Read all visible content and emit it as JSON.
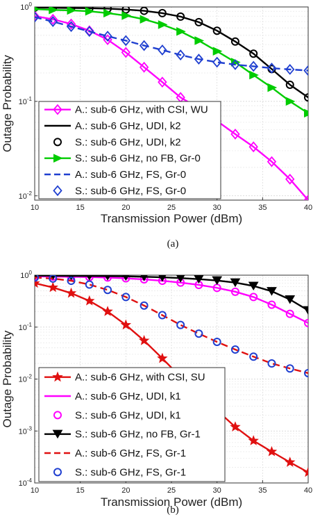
{
  "chart_data": [
    {
      "type": "line",
      "caption": "(a)",
      "xlabel": "Transmission Power (dBm)",
      "ylabel": "Outage Probability",
      "xlim": [
        10,
        40
      ],
      "ylim": [
        0.009,
        1
      ],
      "yscale": "log",
      "grid": true,
      "legend_position": "bottom-left",
      "x_ticks": [
        "10",
        "15",
        "20",
        "25",
        "30",
        "35",
        "40"
      ],
      "y_ticks": [
        {
          "value": 1,
          "base": "10",
          "exp": "0"
        },
        {
          "value": 0.1,
          "base": "10",
          "exp": "-1"
        },
        {
          "value": 0.01,
          "base": "10",
          "exp": "-2"
        }
      ],
      "series": [
        {
          "name": "A.: sub-6 GHz, with CSI, WU",
          "color": "#ff00ff",
          "line": "solid",
          "marker": "diamond",
          "x": [
            10,
            12,
            14,
            16,
            18,
            20,
            22,
            24,
            26,
            28,
            30,
            32,
            34,
            36,
            38,
            40
          ],
          "values": [
            0.8,
            0.74,
            0.66,
            0.56,
            0.45,
            0.33,
            0.23,
            0.16,
            0.11,
            0.085,
            0.062,
            0.045,
            0.033,
            0.023,
            0.015,
            0.009
          ]
        },
        {
          "name": "A.: sub-6 GHz, UDI, k2",
          "color": "#000000",
          "line": "solid",
          "marker": "none",
          "x": [
            10,
            12,
            14,
            16,
            18,
            20,
            22,
            24,
            26,
            28,
            30,
            32,
            34,
            36,
            38,
            40
          ],
          "values": [
            0.985,
            0.98,
            0.975,
            0.97,
            0.96,
            0.94,
            0.91,
            0.86,
            0.79,
            0.69,
            0.56,
            0.43,
            0.32,
            0.22,
            0.15,
            0.11
          ]
        },
        {
          "name": "S.: sub-6 GHz, UDI, k2",
          "color": "#000000",
          "line": "none",
          "marker": "circle",
          "x": [
            10,
            12,
            14,
            16,
            18,
            20,
            22,
            24,
            26,
            28,
            30,
            32,
            34,
            36,
            38,
            40
          ],
          "values": [
            0.985,
            0.98,
            0.975,
            0.97,
            0.96,
            0.94,
            0.91,
            0.86,
            0.79,
            0.69,
            0.56,
            0.43,
            0.32,
            0.22,
            0.15,
            0.11
          ]
        },
        {
          "name": "S.: sub-6 GHz, no FB, Gr-0",
          "color": "#00cc00",
          "line": "solid",
          "marker": "triangle-right",
          "x": [
            10,
            12,
            14,
            16,
            18,
            20,
            22,
            24,
            26,
            28,
            30,
            32,
            34,
            36,
            38,
            40
          ],
          "values": [
            0.95,
            0.93,
            0.92,
            0.9,
            0.86,
            0.81,
            0.74,
            0.65,
            0.55,
            0.44,
            0.34,
            0.26,
            0.19,
            0.14,
            0.1,
            0.075
          ]
        },
        {
          "name": "A.: sub-6 GHz, FS, Gr-0",
          "color": "#1f3fd0",
          "line": "dashed",
          "marker": "none",
          "x": [
            10,
            12,
            14,
            16,
            18,
            20,
            22,
            24,
            26,
            28,
            30,
            32,
            34,
            36,
            38,
            40
          ],
          "values": [
            0.78,
            0.7,
            0.62,
            0.55,
            0.49,
            0.44,
            0.39,
            0.35,
            0.31,
            0.28,
            0.26,
            0.245,
            0.235,
            0.225,
            0.218,
            0.212
          ]
        },
        {
          "name": "S.: sub-6 GHz, FS, Gr-0",
          "color": "#1f3fd0",
          "line": "none",
          "marker": "diamond",
          "x": [
            10,
            12,
            14,
            16,
            18,
            20,
            22,
            24,
            26,
            28,
            30,
            32,
            34,
            36,
            38,
            40
          ],
          "values": [
            0.78,
            0.7,
            0.62,
            0.55,
            0.49,
            0.44,
            0.39,
            0.35,
            0.31,
            0.28,
            0.26,
            0.245,
            0.235,
            0.225,
            0.218,
            0.212
          ]
        }
      ]
    },
    {
      "type": "line",
      "caption": "(b)",
      "xlabel": "Transmission Power (dBm)",
      "ylabel": "Outage Probability",
      "xlim": [
        10,
        40
      ],
      "ylim": [
        0.0001,
        1
      ],
      "yscale": "log",
      "grid": true,
      "legend_position": "bottom-left",
      "x_ticks": [
        "10",
        "15",
        "20",
        "25",
        "30",
        "35",
        "40"
      ],
      "y_ticks": [
        {
          "value": 1,
          "base": "10",
          "exp": "0"
        },
        {
          "value": 0.1,
          "base": "10",
          "exp": "-1"
        },
        {
          "value": 0.01,
          "base": "10",
          "exp": "-2"
        },
        {
          "value": 0.001,
          "base": "10",
          "exp": "-3"
        },
        {
          "value": 0.0001,
          "base": "10",
          "exp": "-4"
        }
      ],
      "series": [
        {
          "name": "A.: sub-6 GHz, with CSI, SU",
          "color": "#e01010",
          "line": "solid",
          "marker": "star",
          "x": [
            10,
            12,
            14,
            16,
            18,
            20,
            22,
            24,
            26,
            28,
            30,
            32,
            34,
            36,
            38,
            40
          ],
          "values": [
            0.7,
            0.58,
            0.45,
            0.32,
            0.2,
            0.11,
            0.055,
            0.025,
            0.011,
            0.0052,
            0.0025,
            0.0012,
            0.00065,
            0.0004,
            0.00025,
            0.00016
          ]
        },
        {
          "name": "A.: sub-6 GHz, UDI, k1",
          "color": "#ff00ff",
          "line": "solid",
          "marker": "none",
          "x": [
            10,
            12,
            14,
            16,
            18,
            20,
            22,
            24,
            26,
            28,
            30,
            32,
            34,
            36,
            38,
            40
          ],
          "values": [
            0.95,
            0.94,
            0.93,
            0.92,
            0.9,
            0.87,
            0.83,
            0.78,
            0.72,
            0.65,
            0.57,
            0.48,
            0.38,
            0.27,
            0.18,
            0.12
          ]
        },
        {
          "name": "S.: sub-6 GHz, UDI, k1",
          "color": "#ff00ff",
          "line": "none",
          "marker": "circle",
          "x": [
            10,
            12,
            14,
            16,
            18,
            20,
            22,
            24,
            26,
            28,
            30,
            32,
            34,
            36,
            38,
            40
          ],
          "values": [
            0.95,
            0.94,
            0.93,
            0.92,
            0.9,
            0.87,
            0.83,
            0.78,
            0.72,
            0.65,
            0.57,
            0.48,
            0.38,
            0.27,
            0.18,
            0.12
          ]
        },
        {
          "name": "S.: sub-6 GHz, no FB, Gr-1",
          "color": "#000000",
          "line": "solid",
          "marker": "triangle-down",
          "x": [
            10,
            12,
            14,
            16,
            18,
            20,
            22,
            24,
            26,
            28,
            30,
            32,
            34,
            36,
            38,
            40
          ],
          "values": [
            0.98,
            0.975,
            0.97,
            0.965,
            0.96,
            0.95,
            0.93,
            0.91,
            0.88,
            0.84,
            0.79,
            0.72,
            0.62,
            0.49,
            0.34,
            0.21
          ]
        },
        {
          "name": "A.: sub-6 GHz, FS, Gr-1",
          "color": "#e01010",
          "line": "dashed",
          "marker": "none",
          "x": [
            10,
            12,
            14,
            16,
            18,
            20,
            22,
            24,
            26,
            28,
            30,
            32,
            34,
            36,
            38,
            40
          ],
          "values": [
            0.9,
            0.86,
            0.78,
            0.66,
            0.52,
            0.38,
            0.26,
            0.17,
            0.11,
            0.075,
            0.052,
            0.037,
            0.027,
            0.02,
            0.016,
            0.013
          ]
        },
        {
          "name": "S.: sub-6 GHz, FS, Gr-1",
          "color": "#1f3fd0",
          "line": "none",
          "marker": "circle",
          "x": [
            10,
            12,
            14,
            16,
            18,
            20,
            22,
            24,
            26,
            28,
            30,
            32,
            34,
            36,
            38,
            40
          ],
          "values": [
            0.9,
            0.86,
            0.78,
            0.66,
            0.52,
            0.38,
            0.26,
            0.17,
            0.11,
            0.075,
            0.052,
            0.037,
            0.027,
            0.02,
            0.016,
            0.013
          ]
        }
      ]
    }
  ]
}
